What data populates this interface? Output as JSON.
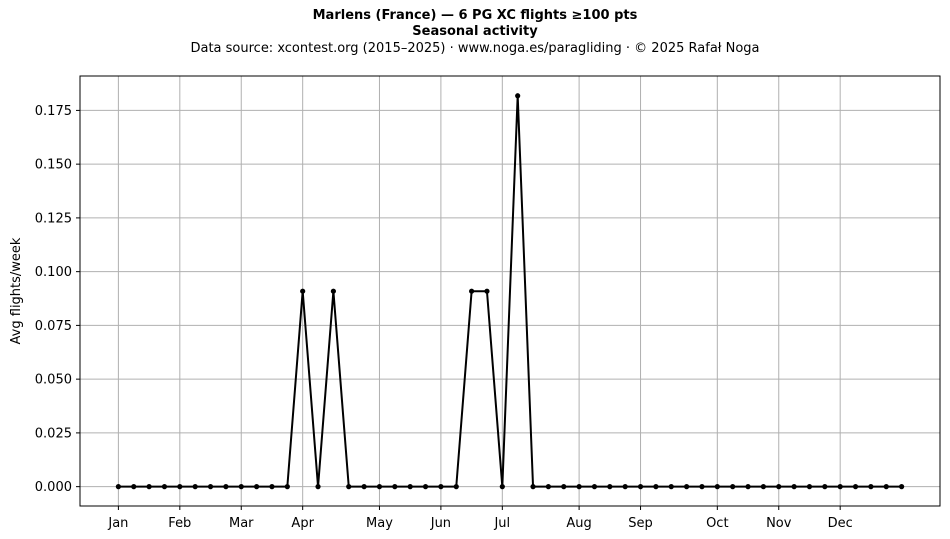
{
  "header": {
    "title": "Marlens (France)  —  6 PG XC flights ≥100 pts",
    "subtitle": "Seasonal activity",
    "source": "Data source: xcontest.org (2015–2025)  ·  www.noga.es/paragliding  ·  © 2025 Rafał Noga"
  },
  "chart_data": {
    "type": "line",
    "title": "Marlens (France)  —  6 PG XC flights ≥100 pts",
    "subtitle": "Seasonal activity",
    "xlabel": "",
    "ylabel": "Avg flights/week",
    "x_unit": "week of year",
    "xlim": [
      -1.5,
      54.5
    ],
    "ylim": [
      -0.009,
      0.191
    ],
    "grid": true,
    "x_ticks": [
      {
        "label": "Jan",
        "week": 1
      },
      {
        "label": "Feb",
        "week": 5
      },
      {
        "label": "Mar",
        "week": 9
      },
      {
        "label": "Apr",
        "week": 13
      },
      {
        "label": "May",
        "week": 18
      },
      {
        "label": "Jun",
        "week": 22
      },
      {
        "label": "Jul",
        "week": 26
      },
      {
        "label": "Aug",
        "week": 31
      },
      {
        "label": "Sep",
        "week": 35
      },
      {
        "label": "Oct",
        "week": 40
      },
      {
        "label": "Nov",
        "week": 44
      },
      {
        "label": "Dec",
        "week": 48
      }
    ],
    "y_ticks": [
      0.0,
      0.025,
      0.05,
      0.075,
      0.1,
      0.125,
      0.15,
      0.175
    ],
    "y_tick_labels": [
      "0.000",
      "0.025",
      "0.050",
      "0.075",
      "0.100",
      "0.125",
      "0.150",
      "0.175"
    ],
    "series": [
      {
        "name": "",
        "color": "#000000",
        "x": [
          1,
          2,
          3,
          4,
          5,
          6,
          7,
          8,
          9,
          10,
          11,
          12,
          13,
          14,
          15,
          16,
          17,
          18,
          19,
          20,
          21,
          22,
          23,
          24,
          25,
          26,
          27,
          28,
          29,
          30,
          31,
          32,
          33,
          34,
          35,
          36,
          37,
          38,
          39,
          40,
          41,
          42,
          43,
          44,
          45,
          46,
          47,
          48,
          49,
          50,
          51,
          52
        ],
        "y": [
          0,
          0,
          0,
          0,
          0,
          0,
          0,
          0,
          0,
          0,
          0,
          0,
          0.0909,
          0,
          0.0909,
          0,
          0,
          0,
          0,
          0,
          0,
          0,
          0,
          0.0909,
          0.0909,
          0,
          0.1818,
          0,
          0,
          0,
          0,
          0,
          0,
          0,
          0,
          0,
          0,
          0,
          0,
          0,
          0,
          0,
          0,
          0,
          0,
          0,
          0,
          0,
          0,
          0,
          0,
          0
        ]
      }
    ]
  }
}
